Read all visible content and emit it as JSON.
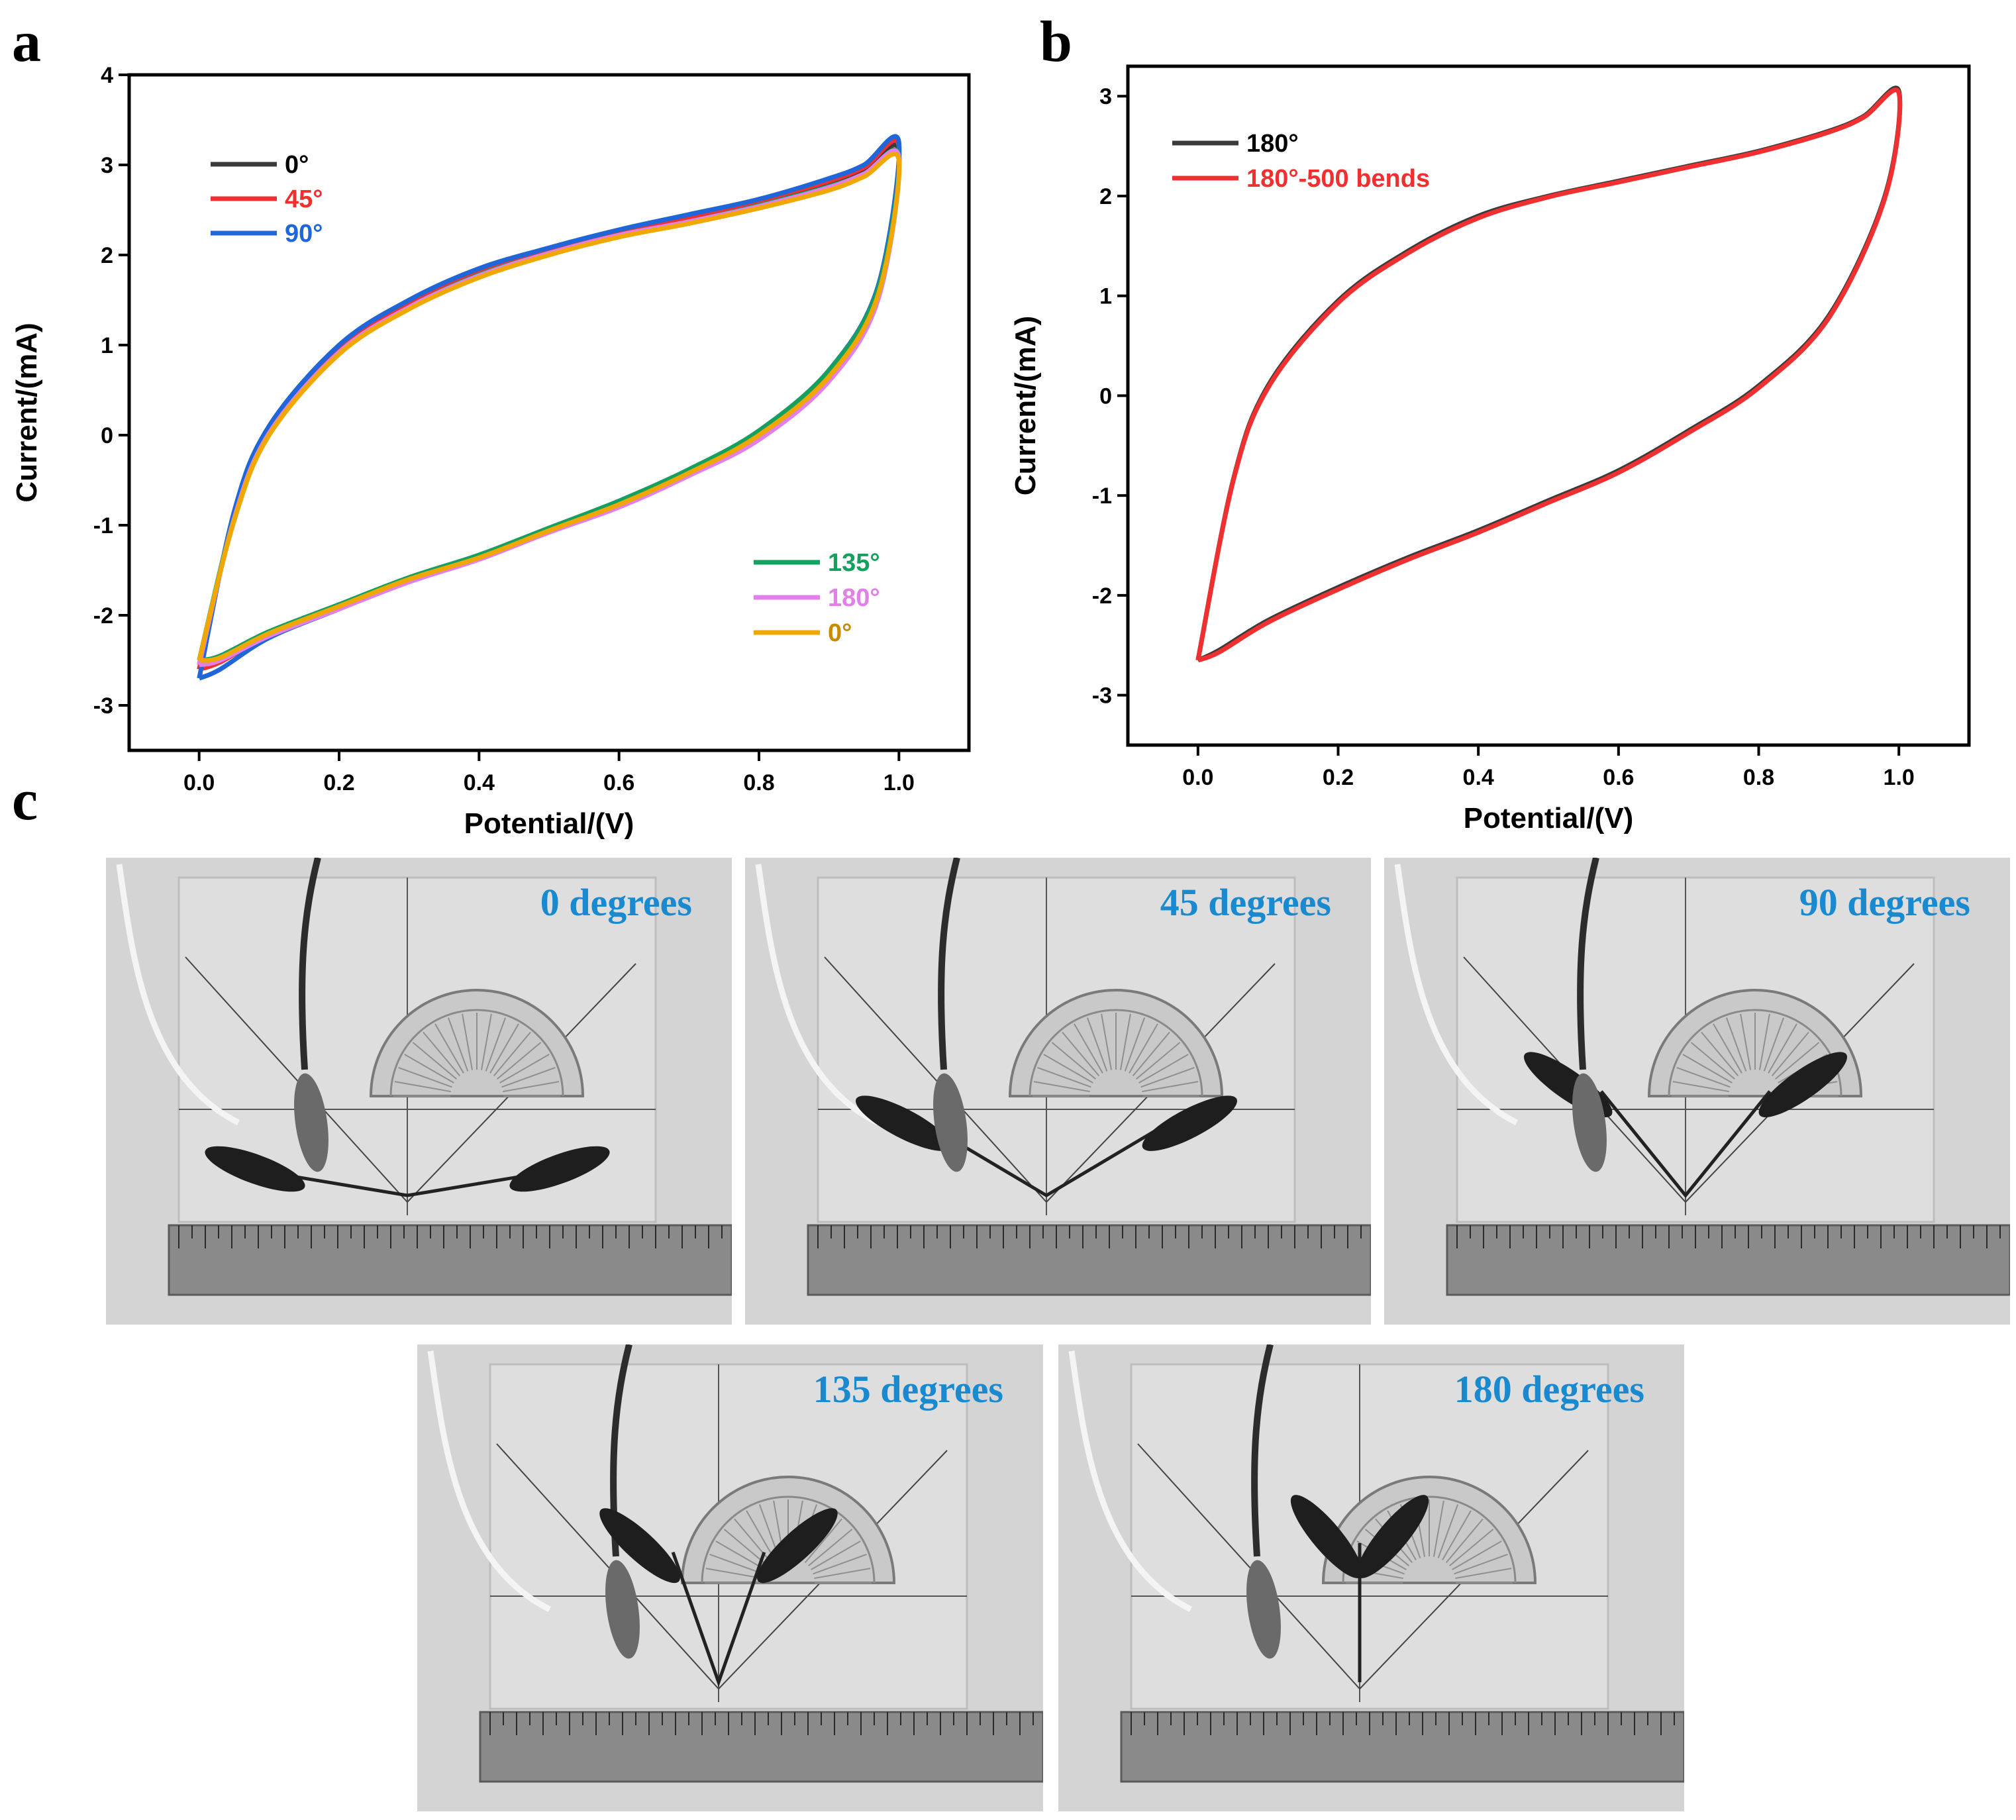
{
  "panels": {
    "a": "a",
    "b": "b",
    "c": "c"
  },
  "colors": {
    "deg0": "#3a3a3a",
    "deg45": "#f03030",
    "deg90": "#1f66d8",
    "deg135": "#16a060",
    "deg180": "#e27fe8",
    "deg0b": "#f0a800",
    "label_blue": "#1a8ad0"
  },
  "chart_data": [
    {
      "id": "a",
      "type": "line",
      "title": "",
      "xlabel": "Potential/(V)",
      "ylabel": "Current/(mA)",
      "xlim": [
        -0.1,
        1.1
      ],
      "ylim": [
        -3.5,
        4
      ],
      "xticks": [
        "0.0",
        "0.2",
        "0.4",
        "0.6",
        "0.8",
        "1.0"
      ],
      "yticks": [
        "-3",
        "-2",
        "-1",
        "0",
        "1",
        "2",
        "3",
        "4"
      ],
      "legend_top_left": [
        "0°",
        "45°",
        "90°"
      ],
      "legend_bottom_right": [
        "135°",
        "180°",
        "0°"
      ],
      "series": [
        {
          "name": "0°",
          "color": "#3a3a3a",
          "upper": [
            [
              0,
              -2.55
            ],
            [
              0.05,
              -0.9
            ],
            [
              0.1,
              0.05
            ],
            [
              0.2,
              0.95
            ],
            [
              0.3,
              1.45
            ],
            [
              0.4,
              1.8
            ],
            [
              0.5,
              2.05
            ],
            [
              0.6,
              2.25
            ],
            [
              0.7,
              2.4
            ],
            [
              0.8,
              2.58
            ],
            [
              0.9,
              2.8
            ],
            [
              0.95,
              2.95
            ],
            [
              1.0,
              3.15
            ]
          ],
          "lower": [
            [
              1.0,
              2.95
            ],
            [
              0.97,
              1.6
            ],
            [
              0.9,
              0.7
            ],
            [
              0.8,
              0.02
            ],
            [
              0.7,
              -0.4
            ],
            [
              0.6,
              -0.75
            ],
            [
              0.5,
              -1.05
            ],
            [
              0.4,
              -1.35
            ],
            [
              0.3,
              -1.6
            ],
            [
              0.2,
              -1.9
            ],
            [
              0.1,
              -2.2
            ],
            [
              0.03,
              -2.5
            ],
            [
              0,
              -2.55
            ]
          ]
        },
        {
          "name": "45°",
          "color": "#f03030",
          "upper": [
            [
              0,
              -2.6
            ],
            [
              0.05,
              -0.9
            ],
            [
              0.1,
              0.05
            ],
            [
              0.2,
              0.95
            ],
            [
              0.3,
              1.45
            ],
            [
              0.4,
              1.8
            ],
            [
              0.5,
              2.05
            ],
            [
              0.6,
              2.25
            ],
            [
              0.7,
              2.4
            ],
            [
              0.8,
              2.6
            ],
            [
              0.9,
              2.82
            ],
            [
              0.95,
              2.97
            ],
            [
              1.0,
              3.2
            ]
          ],
          "lower": [
            [
              1.0,
              2.95
            ],
            [
              0.97,
              1.58
            ],
            [
              0.9,
              0.68
            ],
            [
              0.8,
              0.0
            ],
            [
              0.7,
              -0.42
            ],
            [
              0.6,
              -0.77
            ],
            [
              0.5,
              -1.07
            ],
            [
              0.4,
              -1.37
            ],
            [
              0.3,
              -1.62
            ],
            [
              0.2,
              -1.92
            ],
            [
              0.1,
              -2.22
            ],
            [
              0.03,
              -2.52
            ],
            [
              0,
              -2.6
            ]
          ]
        },
        {
          "name": "90°",
          "color": "#1f66d8",
          "upper": [
            [
              0,
              -2.7
            ],
            [
              0.05,
              -0.85
            ],
            [
              0.1,
              0.1
            ],
            [
              0.2,
              1.0
            ],
            [
              0.3,
              1.5
            ],
            [
              0.4,
              1.85
            ],
            [
              0.5,
              2.08
            ],
            [
              0.6,
              2.28
            ],
            [
              0.7,
              2.45
            ],
            [
              0.8,
              2.62
            ],
            [
              0.9,
              2.85
            ],
            [
              0.95,
              3.0
            ],
            [
              1.0,
              3.25
            ]
          ],
          "lower": [
            [
              1.0,
              3.0
            ],
            [
              0.97,
              1.65
            ],
            [
              0.9,
              0.72
            ],
            [
              0.8,
              0.03
            ],
            [
              0.7,
              -0.4
            ],
            [
              0.6,
              -0.75
            ],
            [
              0.5,
              -1.05
            ],
            [
              0.4,
              -1.36
            ],
            [
              0.3,
              -1.62
            ],
            [
              0.2,
              -1.93
            ],
            [
              0.1,
              -2.25
            ],
            [
              0.03,
              -2.6
            ],
            [
              0,
              -2.7
            ]
          ]
        },
        {
          "name": "135°",
          "color": "#16a060",
          "upper": [
            [
              0,
              -2.5
            ],
            [
              0.05,
              -0.92
            ],
            [
              0.1,
              0.02
            ],
            [
              0.2,
              0.92
            ],
            [
              0.3,
              1.42
            ],
            [
              0.4,
              1.78
            ],
            [
              0.5,
              2.02
            ],
            [
              0.6,
              2.22
            ],
            [
              0.7,
              2.37
            ],
            [
              0.8,
              2.55
            ],
            [
              0.9,
              2.76
            ],
            [
              0.95,
              2.9
            ],
            [
              1.0,
              3.1
            ]
          ],
          "lower": [
            [
              1.0,
              2.9
            ],
            [
              0.97,
              1.62
            ],
            [
              0.9,
              0.72
            ],
            [
              0.8,
              0.05
            ],
            [
              0.7,
              -0.38
            ],
            [
              0.6,
              -0.73
            ],
            [
              0.5,
              -1.03
            ],
            [
              0.4,
              -1.33
            ],
            [
              0.3,
              -1.58
            ],
            [
              0.2,
              -1.88
            ],
            [
              0.1,
              -2.18
            ],
            [
              0.03,
              -2.45
            ],
            [
              0,
              -2.5
            ]
          ]
        },
        {
          "name": "180°",
          "color": "#e27fe8",
          "upper": [
            [
              0,
              -2.55
            ],
            [
              0.05,
              -0.93
            ],
            [
              0.1,
              0.02
            ],
            [
              0.2,
              0.92
            ],
            [
              0.3,
              1.42
            ],
            [
              0.4,
              1.77
            ],
            [
              0.5,
              2.02
            ],
            [
              0.6,
              2.22
            ],
            [
              0.7,
              2.37
            ],
            [
              0.8,
              2.54
            ],
            [
              0.9,
              2.75
            ],
            [
              0.95,
              2.9
            ],
            [
              1.0,
              3.08
            ]
          ],
          "lower": [
            [
              1.0,
              2.9
            ],
            [
              0.97,
              1.5
            ],
            [
              0.9,
              0.6
            ],
            [
              0.8,
              -0.05
            ],
            [
              0.7,
              -0.45
            ],
            [
              0.6,
              -0.8
            ],
            [
              0.5,
              -1.08
            ],
            [
              0.4,
              -1.38
            ],
            [
              0.3,
              -1.63
            ],
            [
              0.2,
              -1.93
            ],
            [
              0.1,
              -2.23
            ],
            [
              0.03,
              -2.5
            ],
            [
              0,
              -2.55
            ]
          ]
        },
        {
          "name": "0°",
          "color": "#f0a800",
          "upper": [
            [
              0,
              -2.5
            ],
            [
              0.05,
              -0.95
            ],
            [
              0.1,
              0.0
            ],
            [
              0.2,
              0.9
            ],
            [
              0.3,
              1.4
            ],
            [
              0.4,
              1.75
            ],
            [
              0.5,
              2.0
            ],
            [
              0.6,
              2.2
            ],
            [
              0.7,
              2.35
            ],
            [
              0.8,
              2.52
            ],
            [
              0.9,
              2.72
            ],
            [
              0.95,
              2.87
            ],
            [
              1.0,
              3.05
            ]
          ],
          "lower": [
            [
              1.0,
              2.85
            ],
            [
              0.97,
              1.55
            ],
            [
              0.9,
              0.65
            ],
            [
              0.8,
              0.0
            ],
            [
              0.7,
              -0.42
            ],
            [
              0.6,
              -0.77
            ],
            [
              0.5,
              -1.06
            ],
            [
              0.4,
              -1.36
            ],
            [
              0.3,
              -1.6
            ],
            [
              0.2,
              -1.9
            ],
            [
              0.1,
              -2.2
            ],
            [
              0.03,
              -2.47
            ],
            [
              0,
              -2.5
            ]
          ]
        }
      ]
    },
    {
      "id": "b",
      "type": "line",
      "title": "",
      "xlabel": "Potential/(V)",
      "ylabel": "Current/(mA)",
      "xlim": [
        -0.1,
        1.1
      ],
      "ylim": [
        -3.5,
        3.3
      ],
      "xticks": [
        "0.0",
        "0.2",
        "0.4",
        "0.6",
        "0.8",
        "1.0"
      ],
      "yticks": [
        "-3",
        "-2",
        "-1",
        "0",
        "1",
        "2",
        "3"
      ],
      "legend": [
        "180°",
        "180°-500 bends"
      ],
      "series": [
        {
          "name": "180°",
          "color": "#3a3a3a",
          "upper": [
            [
              0,
              -2.65
            ],
            [
              0.05,
              -0.85
            ],
            [
              0.1,
              0.1
            ],
            [
              0.2,
              0.95
            ],
            [
              0.3,
              1.45
            ],
            [
              0.4,
              1.8
            ],
            [
              0.5,
              2.0
            ],
            [
              0.6,
              2.15
            ],
            [
              0.7,
              2.3
            ],
            [
              0.8,
              2.45
            ],
            [
              0.9,
              2.65
            ],
            [
              0.95,
              2.8
            ],
            [
              1.0,
              3.05
            ]
          ],
          "lower": [
            [
              1.0,
              3.0
            ],
            [
              0.98,
              2.0
            ],
            [
              0.9,
              0.8
            ],
            [
              0.8,
              0.1
            ],
            [
              0.7,
              -0.35
            ],
            [
              0.6,
              -0.75
            ],
            [
              0.5,
              -1.05
            ],
            [
              0.4,
              -1.35
            ],
            [
              0.3,
              -1.62
            ],
            [
              0.2,
              -1.92
            ],
            [
              0.1,
              -2.25
            ],
            [
              0.03,
              -2.55
            ],
            [
              0,
              -2.65
            ]
          ]
        },
        {
          "name": "180°-500 bends",
          "color": "#f03030",
          "upper": [
            [
              0,
              -2.65
            ],
            [
              0.05,
              -0.86
            ],
            [
              0.1,
              0.08
            ],
            [
              0.2,
              0.93
            ],
            [
              0.3,
              1.43
            ],
            [
              0.4,
              1.78
            ],
            [
              0.5,
              1.99
            ],
            [
              0.6,
              2.14
            ],
            [
              0.7,
              2.29
            ],
            [
              0.8,
              2.44
            ],
            [
              0.9,
              2.64
            ],
            [
              0.95,
              2.79
            ],
            [
              1.0,
              3.03
            ]
          ],
          "lower": [
            [
              1.0,
              2.98
            ],
            [
              0.98,
              1.98
            ],
            [
              0.9,
              0.78
            ],
            [
              0.8,
              0.08
            ],
            [
              0.7,
              -0.37
            ],
            [
              0.6,
              -0.77
            ],
            [
              0.5,
              -1.07
            ],
            [
              0.4,
              -1.37
            ],
            [
              0.3,
              -1.64
            ],
            [
              0.2,
              -1.94
            ],
            [
              0.1,
              -2.27
            ],
            [
              0.03,
              -2.57
            ],
            [
              0,
              -2.65
            ]
          ]
        }
      ]
    }
  ],
  "photos": [
    {
      "label": "0 degrees",
      "bend": 0
    },
    {
      "label": "45 degrees",
      "bend": 45
    },
    {
      "label": "90 degrees",
      "bend": 90
    },
    {
      "label": "135 degrees",
      "bend": 135
    },
    {
      "label": "180 degrees",
      "bend": 180
    }
  ]
}
